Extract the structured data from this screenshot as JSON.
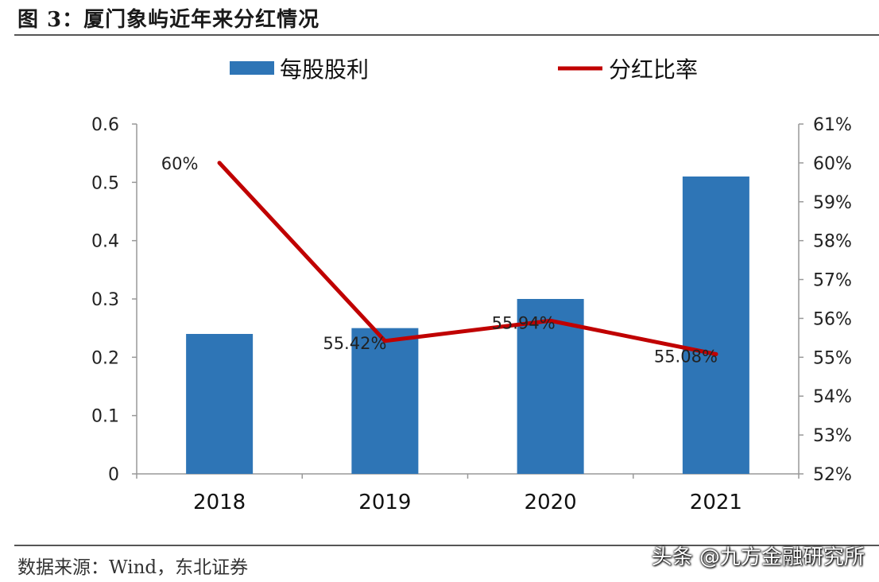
{
  "figure": {
    "title": "图 3：厦门象屿近年来分红情况",
    "source": "数据来源：Wind，东北证券",
    "watermark": "头条 @九方金融研究所"
  },
  "chart_data": {
    "type": "bar",
    "categories": [
      "2018",
      "2019",
      "2020",
      "2021"
    ],
    "series": [
      {
        "name": "每股股利",
        "type": "bar",
        "axis": "left",
        "color": "#2e75b6",
        "values": [
          0.24,
          0.25,
          0.3,
          0.51
        ]
      },
      {
        "name": "分红比率",
        "type": "line",
        "axis": "right",
        "color": "#c00000",
        "values": [
          60.0,
          55.42,
          55.94,
          55.08
        ],
        "unit": "%"
      }
    ],
    "data_labels": [
      "60%",
      "55.42%",
      "55.94%",
      "55.08%"
    ],
    "y_left": {
      "min": 0,
      "max": 0.6,
      "ticks": [
        "0",
        "0.1",
        "0.2",
        "0.3",
        "0.4",
        "0.5",
        "0.6"
      ]
    },
    "y_right": {
      "min": 52,
      "max": 61,
      "ticks": [
        "52%",
        "53%",
        "54%",
        "55%",
        "56%",
        "57%",
        "58%",
        "59%",
        "60%",
        "61%"
      ]
    },
    "legend": {
      "position": "top"
    },
    "grid": false
  }
}
